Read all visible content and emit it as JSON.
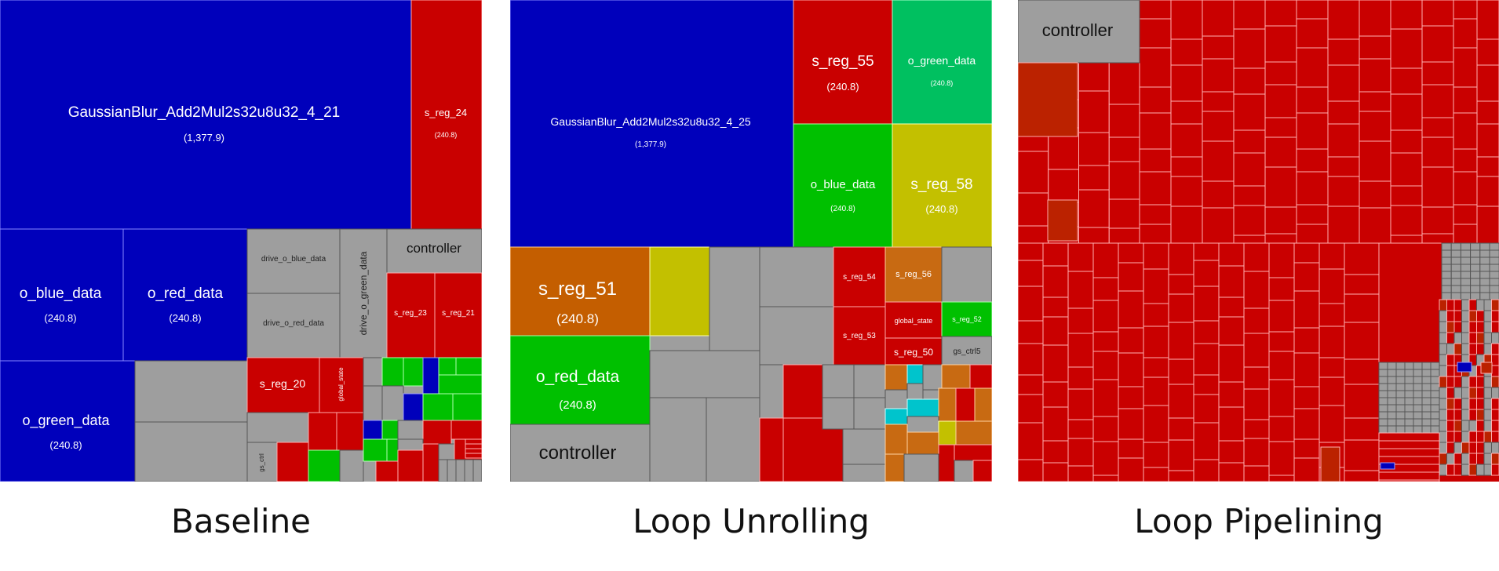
{
  "colors": {
    "blue": "#0000bb",
    "red": "#c90000",
    "gray": "#9e9e9e",
    "green": "#00c000",
    "olive": "#c3c000",
    "orange": "#c45e00",
    "seagreen": "#00c060",
    "cyan": "#00c4cc",
    "darkorange": "#c86a12",
    "brick": "#bb2200"
  },
  "panels": [
    {
      "id": "baseline",
      "caption": "Baseline",
      "labels": {
        "top": "GaussianBlur_Add2Mul2s32u8u32_4_21",
        "top_value": "(1,377.9)",
        "s_reg_24": "s_reg_24",
        "s_reg_24_value": "(240.8)",
        "o_blue": "o_blue_data",
        "o_blue_value": "(240.8)",
        "o_red": "o_red_data",
        "o_red_value": "(240.8)",
        "o_green": "o_green_data",
        "o_green_value": "(240.8)",
        "drive_o_blue": "drive_o_blue_data",
        "drive_o_red": "drive_o_red_data",
        "drive_o_green": "drive_o_green_data",
        "controller": "controller",
        "s_reg_23": "s_reg_23",
        "s_reg_21": "s_reg_21",
        "s_reg_20": "s_reg_20",
        "global_state": "global_state",
        "gs_ctrl": "gs_ctrl"
      }
    },
    {
      "id": "unrolling",
      "caption": "Loop Unrolling",
      "labels": {
        "top": "GaussianBlur_Add2Mul2s32u8u32_4_25",
        "top_value": "(1,377.9)",
        "s_reg_55": "s_reg_55",
        "s_reg_55_value": "(240.8)",
        "o_green": "o_green_data",
        "o_green_value": "(240.8)",
        "o_blue": "o_blue_data",
        "o_blue_value": "(240.8)",
        "s_reg_58": "s_reg_58",
        "s_reg_58_value": "(240.8)",
        "s_reg_51": "s_reg_51",
        "s_reg_51_value": "(240.8)",
        "o_red": "o_red_data",
        "o_red_value": "(240.8)",
        "controller": "controller",
        "s_reg_54": "s_reg_54",
        "s_reg_56": "s_reg_56",
        "s_reg_53": "s_reg_53",
        "global_state": "global_state",
        "s_reg_52": "s_reg_52",
        "s_reg_50": "s_reg_50",
        "gs_ctrl5": "gs_ctrl5"
      }
    },
    {
      "id": "pipelining",
      "caption": "Loop Pipelining",
      "labels": {
        "controller": "controller"
      }
    }
  ]
}
